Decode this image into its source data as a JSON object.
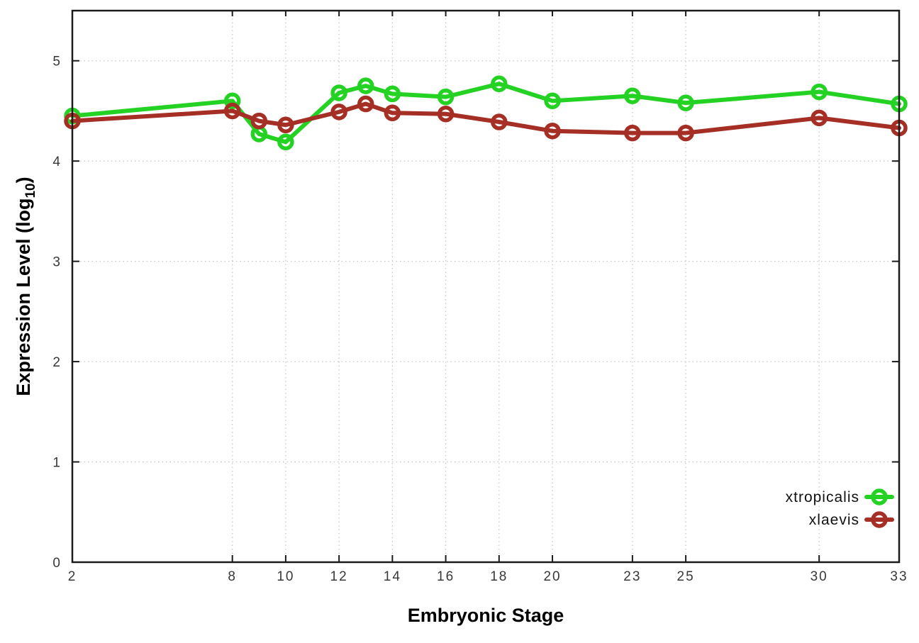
{
  "figure": {
    "background": "#ffffff",
    "axis_color": "#1b1b1b",
    "grid_color": "#c8c8c8",
    "tick_text_color": "#383838",
    "label_text_color": "#000000"
  },
  "chart_data": {
    "type": "line",
    "title": "",
    "xlabel": "Embryonic Stage",
    "ylabel": "Expression Level (log10)",
    "ylabel_parts": {
      "pre": "Expression Level (log",
      "sub": "10",
      "post": ")"
    },
    "x": [
      2,
      8,
      9,
      10,
      12,
      13,
      14,
      16,
      18,
      20,
      23,
      25,
      30,
      33
    ],
    "series": [
      {
        "name": "xtropicalis",
        "color": "#24d224",
        "values": [
          4.45,
          4.6,
          4.27,
          4.19,
          4.68,
          4.75,
          4.67,
          4.64,
          4.77,
          4.6,
          4.65,
          4.58,
          4.69,
          4.57
        ]
      },
      {
        "name": "xlaevis",
        "color": "#a52f25",
        "values": [
          4.4,
          4.5,
          4.4,
          4.36,
          4.49,
          4.57,
          4.48,
          4.47,
          4.39,
          4.3,
          4.28,
          4.28,
          4.43,
          4.33
        ]
      }
    ],
    "xticks": [
      2,
      8,
      10,
      12,
      14,
      16,
      18,
      20,
      23,
      25,
      30,
      33
    ],
    "yticks": [
      0,
      1,
      2,
      3,
      4,
      5
    ],
    "xlim": [
      2,
      33
    ],
    "ylim": [
      0,
      5.5
    ],
    "grid": true,
    "legend_position": "bottom-right",
    "legend_entries": [
      "xtropicalis",
      "xlaevis"
    ]
  }
}
